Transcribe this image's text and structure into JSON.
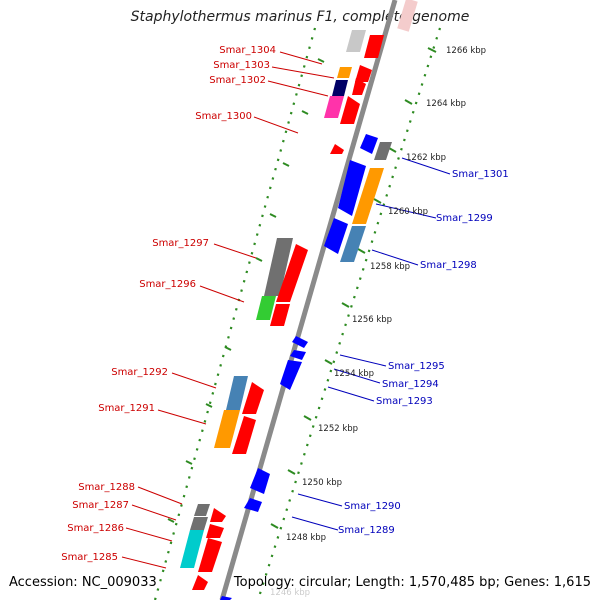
{
  "title": "Staphylothermus marinus F1, complete genome",
  "accession_text": "Accession: NC_009033",
  "summary_text": "Topology: circular; Length: 1,570,485 bp; Genes: 1,615",
  "colors": {
    "backbone": "#8a8a8a",
    "ruler_dots": "#2e8b22",
    "forward_label": "#cc0000",
    "reverse_label": "#0000bb",
    "red": "#ff0000",
    "blue": "#0000ff",
    "gray": "#707070",
    "light_gray": "#c8c8c8",
    "orange": "#ff9900",
    "steel_blue": "#4682b4",
    "green": "#33cc33",
    "cyan": "#00cccc",
    "magenta": "#ff33aa",
    "navy": "#000066"
  },
  "scale_labels": [
    "1266 kbp",
    "1264 kbp",
    "1262 kbp",
    "1260 kbp",
    "1258 kbp",
    "1256 kbp",
    "1254 kbp",
    "1252 kbp",
    "1250 kbp",
    "1248 kbp",
    "1246 kbp"
  ],
  "forward_labels": [
    "Smar_1304",
    "Smar_1303",
    "Smar_1302",
    "Smar_1300",
    "Smar_1297",
    "Smar_1296",
    "Smar_1292",
    "Smar_1291",
    "Smar_1288",
    "Smar_1287",
    "Smar_1286",
    "Smar_1285"
  ],
  "reverse_labels": [
    "Smar_1301",
    "Smar_1299",
    "Smar_1298",
    "Smar_1295",
    "Smar_1294",
    "Smar_1293",
    "Smar_1290",
    "Smar_1289"
  ]
}
